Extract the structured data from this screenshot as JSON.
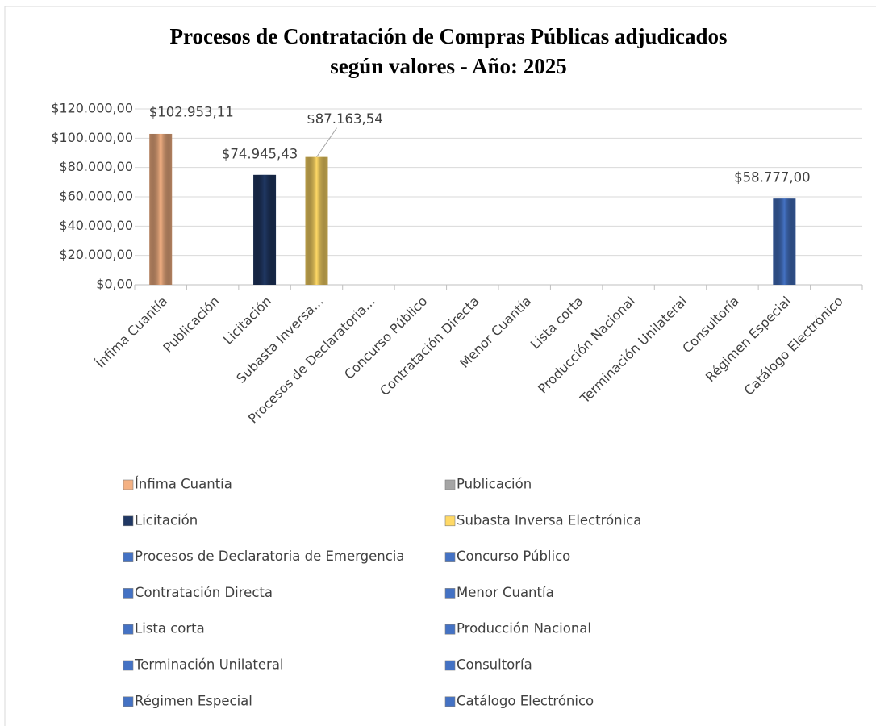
{
  "chart_data": {
    "type": "bar",
    "title": [
      "Procesos de Contratación de Compras Públicas adjudicados",
      "según valores - Año: 2025"
    ],
    "categories": [
      "Ínfima Cuantía",
      "Publicación",
      "Licitación",
      "Subasta Inversa...",
      "Procesos de Declaratoria...",
      "Concurso Público",
      "Contratación Directa",
      "Menor Cuantía",
      "Lista corta",
      "Producción Nacional",
      "Terminación Unilateral",
      "Consultoría",
      "Régimen Especial",
      "Catálogo Electrónico"
    ],
    "legend": [
      "Ínfima Cuantía",
      "Publicación",
      "Licitación",
      "Subasta Inversa Electrónica",
      "Procesos de Declaratoria de Emergencia",
      "Concurso Público",
      "Contratación Directa",
      "Menor Cuantía",
      "Lista corta",
      "Producción Nacional",
      "Terminación Unilateral",
      "Consultoría",
      "Régimen Especial",
      "Catálogo Electrónico"
    ],
    "values": [
      102953.11,
      0,
      74945.43,
      87163.54,
      0,
      0,
      0,
      0,
      0,
      0,
      0,
      0,
      58777.0,
      0
    ],
    "value_labels": [
      "$102.953,11",
      null,
      "$74.945,43",
      "$87.163,54",
      null,
      null,
      null,
      null,
      null,
      null,
      null,
      null,
      "$58.777,00",
      null
    ],
    "colors": [
      "#f4b183",
      "#a5a5a5",
      "#203864",
      "#ffd966",
      "#4472c4",
      "#4472c4",
      "#4472c4",
      "#4472c4",
      "#4472c4",
      "#4472c4",
      "#4472c4",
      "#4472c4",
      "#4472c4",
      "#4472c4"
    ],
    "ylim": [
      0,
      120000
    ],
    "yticks": [
      {
        "value": 0,
        "label": "$0,00"
      },
      {
        "value": 20000,
        "label": "$20.000,00"
      },
      {
        "value": 40000,
        "label": "$40.000,00"
      },
      {
        "value": 60000,
        "label": "$60.000,00"
      },
      {
        "value": 80000,
        "label": "$80.000,00"
      },
      {
        "value": 100000,
        "label": "$100.000,00"
      },
      {
        "value": 120000,
        "label": "$120.000,00"
      }
    ],
    "grid": true,
    "legend_position": "bottom"
  }
}
